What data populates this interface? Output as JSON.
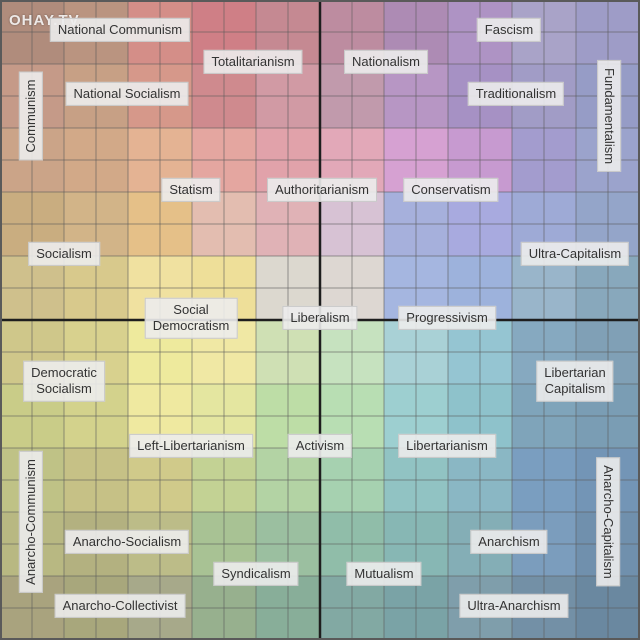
{
  "diagram": {
    "colors": {
      "grid_line": "#5a5a5a",
      "axis_line": "#1e1e1e",
      "label_bg": "#ececec"
    },
    "cell_colors": [
      [
        "#b08c7c",
        "#ba9480",
        "#d48e88",
        "#cf7f86",
        "#c58992",
        "#bd8ca0",
        "#ad8bb4",
        "#ae93c4",
        "#a9a3c8",
        "#9e9cc7"
      ],
      [
        "#c59a88",
        "#c7a085",
        "#d6988a",
        "#cf8a8e",
        "#d19aa4",
        "#c19aac",
        "#b796c4",
        "#a691c4",
        "#a19cc6",
        "#969cc6"
      ],
      [
        "#cba488",
        "#d2a988",
        "#e4b393",
        "#e4a6a0",
        "#e1a2aa",
        "#e2a8b8",
        "#d6a1d2",
        "#c79ad0",
        "#a39cce",
        "#9ba3cc"
      ],
      [
        "#c9ad80",
        "#d2b488",
        "#e5c088",
        "#e3bdb0",
        "#e0b2b6",
        "#d7c2d4",
        "#a6b0dc",
        "#a8aadf",
        "#9eaad6",
        "#94a5c9"
      ],
      [
        "#cfc08c",
        "#d8c98c",
        "#f0e1a0",
        "#eedf99",
        "#dcd8cf",
        "#ddd7d2",
        "#a5b6e0",
        "#9db2dc",
        "#99b5ca",
        "#88a8bc"
      ],
      [
        "#cfc78a",
        "#d8d18e",
        "#eeea9d",
        "#f0e8a4",
        "#cfe0b4",
        "#c6e2bf",
        "#a9d1d6",
        "#95c5d2",
        "#86a9c0",
        "#80a0b6"
      ],
      [
        "#c9cc88",
        "#d3d28c",
        "#efe9a0",
        "#e4e6a0",
        "#bddda6",
        "#b8deb3",
        "#9dcfd0",
        "#8ec2cb",
        "#7fa4ba",
        "#7a9db4"
      ],
      [
        "#bfc286",
        "#c6c186",
        "#d0ca8a",
        "#c3d294",
        "#b3d3a4",
        "#a6d1b0",
        "#91c3c3",
        "#8ab7c4",
        "#7a9ec0",
        "#7395b6"
      ],
      [
        "#b8b882",
        "#b3b180",
        "#bcbc88",
        "#a8c294",
        "#9bbfa0",
        "#90bda9",
        "#87b7b4",
        "#84aeb6",
        "#7b9dbd",
        "#7090ad"
      ],
      [
        "#a9a37e",
        "#a8a77c",
        "#a7a98a",
        "#97b08e",
        "#88ae99",
        "#82a9a3",
        "#7aa3a6",
        "#7f9eab",
        "#7390a6",
        "#6a88a0"
      ]
    ],
    "watermark": "OHAY.TV",
    "labels": {
      "national_communism": "National Communism",
      "totalitarianism": "Totalitarianism",
      "nationalism": "Nationalism",
      "fascism": "Fascism",
      "communism": "Communism",
      "national_socialism": "National Socialism",
      "traditionalism": "Traditionalism",
      "fundamentalism": "Fundamentalism",
      "statism": "Statism",
      "authoritarianism": "Authoritarianism",
      "conservatism": "Conservatism",
      "socialism": "Socialism",
      "ultra_capitalism": "Ultra-Capitalism",
      "social_democratism": "Social\nDemocratism",
      "liberalism": "Liberalism",
      "progressivism": "Progressivism",
      "democratic_socialism": "Democratic\nSocialism",
      "libertarian_capitalism": "Libertarian\nCapitalism",
      "left_libertarianism": "Left-Libertarianism",
      "activism": "Activism",
      "libertarianism": "Libertarianism",
      "anarcho_communism": "Anarcho-Communism",
      "anarcho_capitalism": "Anarcho-Capitalism",
      "anarcho_socialism": "Anarcho-Socialism",
      "anarchism": "Anarchism",
      "syndicalism": "Syndicalism",
      "mutualism": "Mutualism",
      "anarcho_collectivist": "Anarcho-Collectivist",
      "ultra_anarchism": "Ultra-Anarchism"
    }
  }
}
